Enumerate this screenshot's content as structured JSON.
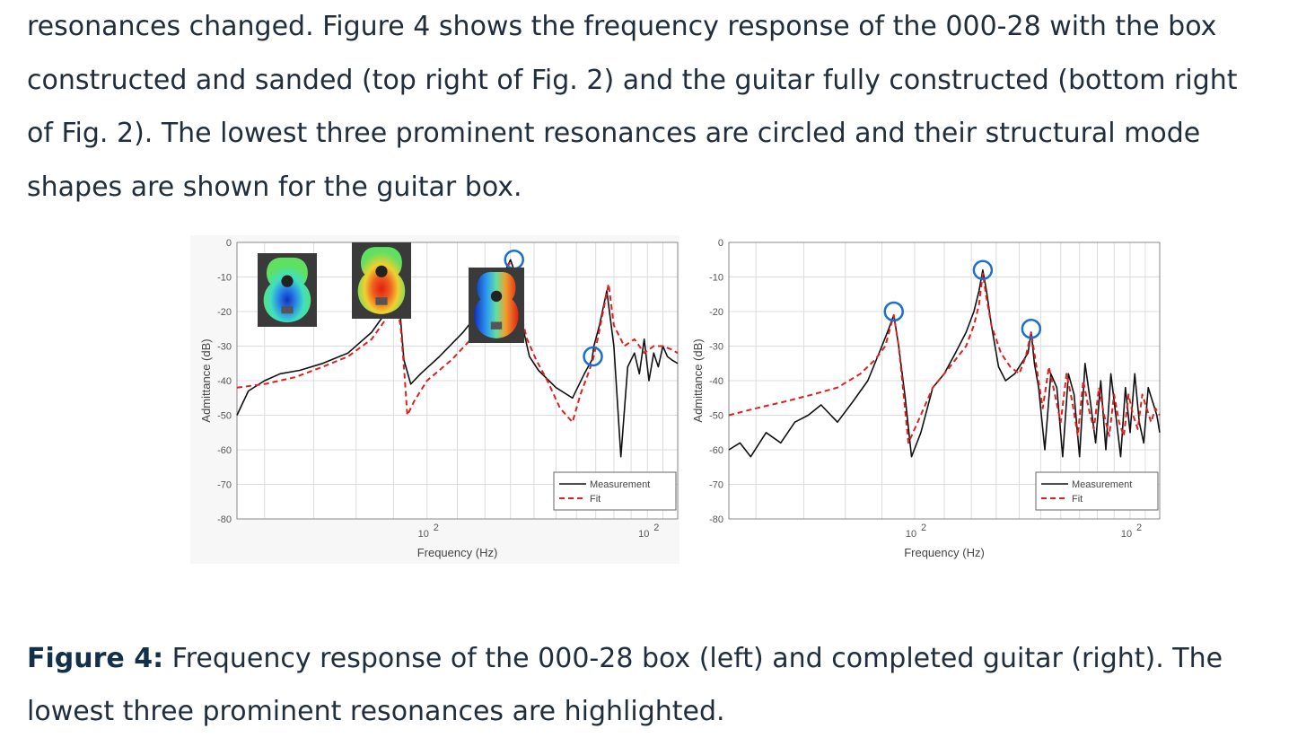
{
  "paragraph": {
    "lines": [
      "resonances changed. Figure 4 shows the frequency response of the 000-28 with the box",
      "constructed and sanded (top right of Fig. 2) and the guitar fully constructed (bottom right",
      "of Fig. 2). The lowest three prominent resonances are circled and their structural mode",
      "shapes are shown for the guitar box."
    ]
  },
  "caption": {
    "label": "Figure 4:",
    "line1": " Frequency response of the 000-28 box (left) and completed guitar (right). The",
    "line2": "lowest three prominent resonances are highlighted."
  },
  "colors": {
    "text": "#1f2d3d",
    "caption_label": "#13304a",
    "measurement": "#111111",
    "fit": "#e02020",
    "circle": "#1a6fd0",
    "grid": "#dcdcdc"
  },
  "chart_data": [
    {
      "type": "line",
      "panel": "left",
      "xscale": "log",
      "xlim": [
        55,
        220
      ],
      "ylim": [
        -80,
        0
      ],
      "yticks": [
        "0",
        "-10",
        "-20",
        "-30",
        "-40",
        "-50",
        "-60",
        "-70",
        "-80"
      ],
      "xticks": [
        {
          "value": 100,
          "base": "10",
          "exp": "2"
        },
        {
          "value": 200,
          "base": "10",
          "exp": "2"
        }
      ],
      "xlabel": "Frequency (Hz)",
      "ylabel": "Admittance (dB)",
      "legend": {
        "placement": "bottom-right",
        "entries": [
          "Measurement",
          "Fit"
        ]
      },
      "series": [
        {
          "name": "Measurement",
          "style": "solid",
          "x": [
            55,
            57,
            60,
            63,
            67,
            72,
            78,
            84,
            88,
            90,
            91.5,
            92,
            93,
            95,
            98,
            104,
            112,
            120,
            126,
            130,
            131.5,
            133,
            135,
            138,
            142,
            150,
            158,
            164,
            168,
            169,
            172,
            176,
            180,
            184,
            188,
            192,
            195,
            198,
            201,
            204,
            207,
            210,
            213,
            216,
            220
          ],
          "y": [
            -50,
            -43,
            -40,
            -38,
            -37,
            -35,
            -32,
            -26,
            -20,
            -14,
            -16,
            -22,
            -34,
            -41,
            -38,
            -33,
            -26,
            -18,
            -11,
            -5,
            -8,
            -14,
            -24,
            -33,
            -37,
            -42,
            -45,
            -38,
            -34,
            -30,
            -24,
            -14,
            -30,
            -62,
            -36,
            -32,
            -38,
            -28,
            -40,
            -32,
            -36,
            -30,
            -33,
            -34,
            -35
          ]
        },
        {
          "name": "Fit",
          "style": "dashed",
          "x": [
            55,
            60,
            66,
            72,
            78,
            84,
            88,
            90.5,
            92,
            93,
            94,
            96,
            100,
            108,
            116,
            122,
            126,
            129.5,
            132,
            134,
            137,
            141,
            146,
            152,
            158,
            162,
            166,
            168.5,
            171,
            174,
            177,
            180,
            186,
            192,
            198,
            204,
            210,
            216,
            220
          ],
          "y": [
            -42,
            -41,
            -39,
            -36,
            -33,
            -28,
            -22,
            -16,
            -24,
            -36,
            -50,
            -46,
            -40,
            -34,
            -27,
            -20,
            -14,
            -6,
            -12,
            -20,
            -28,
            -34,
            -40,
            -48,
            -52,
            -44,
            -38,
            -34,
            -28,
            -20,
            -12,
            -24,
            -30,
            -28,
            -32,
            -30,
            -30,
            -31,
            -32
          ]
        }
      ],
      "highlighted_resonances": [
        {
          "x": 91.5,
          "y": -14
        },
        {
          "x": 131.5,
          "y": -5
        },
        {
          "x": 168.5,
          "y": -33
        }
      ],
      "mode_shape_insets": 3
    },
    {
      "type": "line",
      "panel": "right",
      "xscale": "log",
      "xlim": [
        55,
        220
      ],
      "ylim": [
        -80,
        0
      ],
      "yticks": [
        "0",
        "-10",
        "-20",
        "-30",
        "-40",
        "-50",
        "-60",
        "-70",
        "-80"
      ],
      "xticks": [
        {
          "value": 100,
          "base": "10",
          "exp": "2"
        },
        {
          "value": 200,
          "base": "10",
          "exp": "2"
        }
      ],
      "xlabel": "Frequency (Hz)",
      "ylabel": "Admittance (dB)",
      "legend": {
        "placement": "bottom-right",
        "entries": [
          "Measurement",
          "Fit"
        ]
      },
      "series": [
        {
          "name": "Measurement",
          "style": "solid",
          "x": [
            55,
            57,
            59,
            62,
            65,
            68,
            71,
            74,
            78,
            82,
            86,
            90,
            92,
            93.5,
            95,
            97,
            99,
            102,
            106,
            110,
            114,
            118,
            121,
            123,
            124.5,
            126,
            128,
            131,
            134,
            138,
            142,
            144,
            145.5,
            147,
            149,
            152,
            155,
            158,
            161,
            164,
            167,
            170,
            173,
            176,
            179,
            182,
            185,
            188,
            191,
            194,
            197,
            200,
            203,
            206,
            209,
            212,
            215,
            218,
            220
          ],
          "y": [
            -60,
            -58,
            -62,
            -55,
            -58,
            -52,
            -50,
            -47,
            -52,
            -46,
            -40,
            -30,
            -25,
            -21,
            -30,
            -45,
            -62,
            -55,
            -42,
            -38,
            -32,
            -26,
            -20,
            -14,
            -8,
            -14,
            -24,
            -36,
            -40,
            -38,
            -34,
            -32,
            -26,
            -35,
            -42,
            -60,
            -38,
            -42,
            -62,
            -38,
            -44,
            -62,
            -35,
            -46,
            -58,
            -40,
            -60,
            -38,
            -50,
            -62,
            -42,
            -55,
            -38,
            -52,
            -58,
            -42,
            -46,
            -50,
            -55
          ]
        },
        {
          "name": "Fit",
          "style": "dashed",
          "x": [
            55,
            60,
            66,
            72,
            78,
            84,
            88,
            91,
            93.5,
            95,
            96.5,
            98,
            101,
            106,
            112,
            118,
            121,
            123,
            124.5,
            126,
            128,
            132,
            136,
            140,
            143,
            145.5,
            148,
            151,
            154,
            157,
            160,
            163,
            166,
            169,
            172,
            175,
            178,
            181,
            184,
            187,
            190,
            193,
            196,
            199,
            202,
            205,
            208,
            211,
            214,
            217,
            220
          ],
          "y": [
            -50,
            -48,
            -46,
            -44,
            -42,
            -38,
            -34,
            -30,
            -21,
            -30,
            -44,
            -58,
            -52,
            -42,
            -36,
            -30,
            -24,
            -18,
            -9,
            -16,
            -24,
            -32,
            -36,
            -38,
            -33,
            -26,
            -36,
            -48,
            -36,
            -44,
            -52,
            -38,
            -46,
            -56,
            -40,
            -48,
            -54,
            -42,
            -50,
            -56,
            -44,
            -52,
            -56,
            -44,
            -50,
            -54,
            -44,
            -48,
            -52,
            -48,
            -50
          ]
        }
      ],
      "highlighted_resonances": [
        {
          "x": 93.5,
          "y": -20
        },
        {
          "x": 124.5,
          "y": -8
        },
        {
          "x": 145.5,
          "y": -25
        }
      ]
    }
  ]
}
